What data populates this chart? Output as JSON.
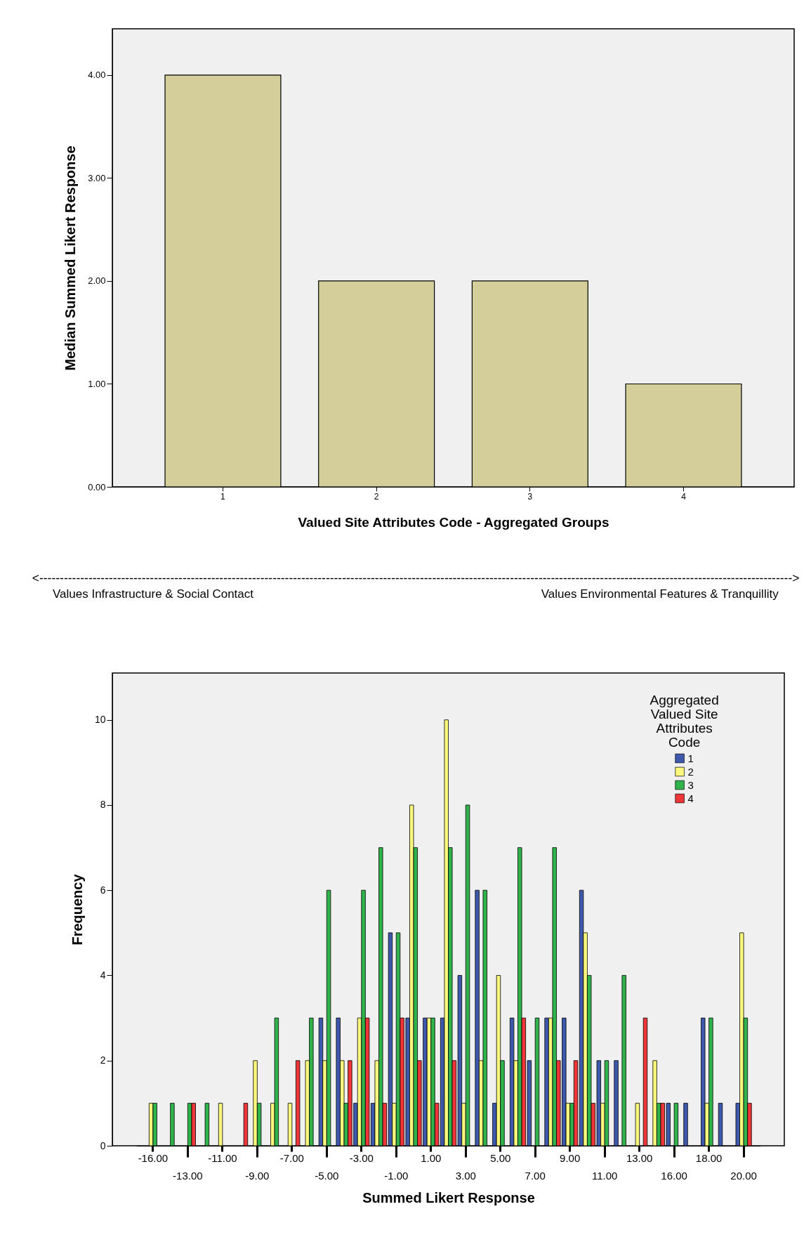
{
  "chart_data": [
    {
      "type": "bar",
      "xlabel": "Valued Site Attributes Code - Aggregated Groups",
      "ylabel": "Median Summed Likert Response",
      "categories": [
        "1",
        "2",
        "3",
        "4"
      ],
      "values": [
        4,
        2,
        2,
        1
      ],
      "color": "#d3ce9a",
      "ylim": [
        0,
        4.45
      ],
      "yticks": [
        {
          "value": 0,
          "label": "0.00"
        },
        {
          "value": 1,
          "label": "1.00"
        },
        {
          "value": 2,
          "label": "2.00"
        },
        {
          "value": 3,
          "label": "3.00"
        },
        {
          "value": 4,
          "label": "4.00"
        }
      ],
      "grid": false,
      "annotations": [
        "<---------------------------------------------------------------------------------------------------------------------------------------------------------------------------------------->",
        "Values Infrastructure & Social Contact",
        "Values Environmental Features & Tranquillity"
      ]
    },
    {
      "type": "bar",
      "xlabel": "Summed Likert Response",
      "ylabel": "Frequency",
      "legend_title": "Aggregated Valued Site Attributes Code",
      "categories": [
        "-16.00",
        null,
        "-13.00",
        null,
        "-11.00",
        null,
        "-9.00",
        null,
        "-7.00",
        null,
        "-5.00",
        null,
        "-3.00",
        null,
        "-1.00",
        null,
        "1.00",
        null,
        "3.00",
        null,
        "5.00",
        null,
        "7.00",
        null,
        "9.00",
        null,
        "11.00",
        null,
        "13.00",
        null,
        "16.00",
        null,
        "18.00",
        null,
        "20.00"
      ],
      "series": [
        {
          "name": "1",
          "color": "#3e58ac",
          "values": [
            null,
            null,
            null,
            null,
            null,
            null,
            null,
            null,
            null,
            null,
            3,
            3,
            1,
            1,
            5,
            3,
            3,
            3,
            4,
            6,
            1,
            3,
            2,
            3,
            3,
            6,
            2,
            2,
            null,
            null,
            1,
            1,
            3,
            1,
            1
          ]
        },
        {
          "name": "2",
          "color": "#fbf87d",
          "values": [
            1,
            null,
            null,
            null,
            1,
            null,
            2,
            1,
            1,
            2,
            2,
            2,
            3,
            2,
            1,
            8,
            3,
            10,
            1,
            2,
            4,
            2,
            null,
            3,
            1,
            5,
            1,
            null,
            1,
            2,
            null,
            null,
            1,
            null,
            5
          ]
        },
        {
          "name": "3",
          "color": "#2fb34a",
          "values": [
            1,
            1,
            1,
            1,
            null,
            null,
            1,
            3,
            null,
            3,
            6,
            1,
            6,
            7,
            5,
            7,
            3,
            7,
            8,
            6,
            2,
            7,
            3,
            7,
            1,
            4,
            2,
            4,
            null,
            1,
            1,
            null,
            3,
            null,
            3
          ]
        },
        {
          "name": "4",
          "color": "#ee3537",
          "values": [
            null,
            null,
            1,
            null,
            null,
            1,
            null,
            null,
            2,
            null,
            null,
            2,
            3,
            1,
            3,
            2,
            1,
            2,
            null,
            null,
            null,
            3,
            null,
            2,
            2,
            1,
            null,
            null,
            3,
            1,
            null,
            null,
            null,
            null,
            1
          ]
        }
      ],
      "ylim": [
        0,
        11.1
      ],
      "yticks": [
        0,
        2,
        4,
        6,
        8,
        10
      ],
      "grid": false,
      "legend": "top right"
    }
  ]
}
